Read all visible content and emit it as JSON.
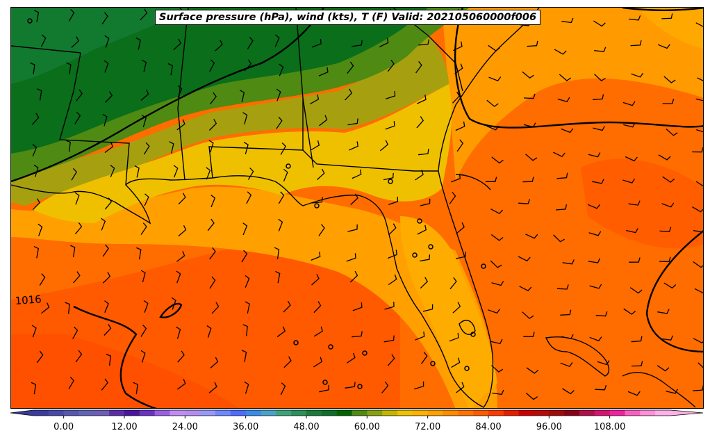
{
  "title": "Surface pressure (hPa), wind (kts), T (F) Valid: 202105060000f006",
  "isobar_labels": [
    {
      "text": "1016"
    }
  ],
  "colorbar": {
    "min": -6,
    "max": 120,
    "step": 3,
    "ticks": [
      "0.00",
      "12.00",
      "24.00",
      "36.00",
      "48.00",
      "60.00",
      "72.00",
      "84.00",
      "96.00",
      "108.00"
    ],
    "tick_values": [
      0,
      12,
      24,
      36,
      48,
      60,
      72,
      84,
      96,
      108
    ],
    "colors": [
      "#3b3b9c",
      "#4848a8",
      "#5656b0",
      "#6262b6",
      "#6e5eb4",
      "#5a2da8",
      "#4a149e",
      "#6a32c0",
      "#9a5ee0",
      "#c08cf0",
      "#b48cf0",
      "#9898f8",
      "#6f87ff",
      "#4d6bff",
      "#3a8ae8",
      "#4aa0c8",
      "#3ca27a",
      "#2d8f5a",
      "#1a7a3a",
      "#0f6e2a",
      "#006400",
      "#4f8a12",
      "#86a010",
      "#c2b400",
      "#eec000",
      "#ffb000",
      "#ffa000",
      "#ff8c00",
      "#ff7200",
      "#ff5a00",
      "#ff3a00",
      "#e61e00",
      "#cc0000",
      "#b80a0a",
      "#a00a0a",
      "#8a0016",
      "#b0104a",
      "#d41470",
      "#f020a0",
      "#f860c0",
      "#ff90d8",
      "#ffb0e8"
    ]
  },
  "colors": {
    "green_dark": "#0a6a1a",
    "green": "#4f8a12",
    "olive": "#a0a010",
    "yellow": "#eec000",
    "amber": "#ffa600",
    "orange": "#ff8c00",
    "orange_dark": "#ff6a00",
    "red_orange": "#ff5400"
  }
}
